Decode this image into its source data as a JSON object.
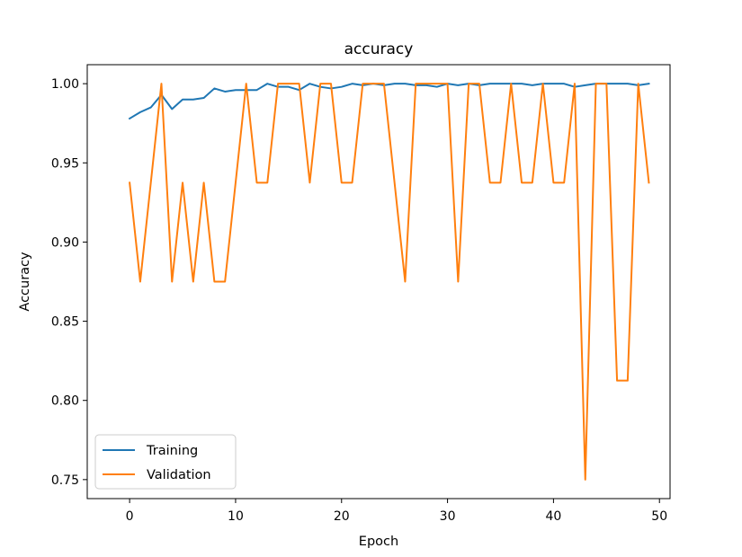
{
  "chart_data": {
    "type": "line",
    "title": "accuracy",
    "xlabel": "Epoch",
    "ylabel": "Accuracy",
    "xlim": [
      -4,
      51
    ],
    "ylim": [
      0.738,
      1.012
    ],
    "xticks": [
      0,
      10,
      20,
      30,
      40,
      50
    ],
    "xtick_labels": [
      "0",
      "10",
      "20",
      "30",
      "40",
      "50"
    ],
    "yticks": [
      0.75,
      0.8,
      0.85,
      0.9,
      0.95,
      1.0
    ],
    "ytick_labels": [
      "0.75",
      "0.80",
      "0.85",
      "0.90",
      "0.95",
      "1.00"
    ],
    "legend_position": "lower-left",
    "grid": false,
    "series": [
      {
        "name": "Training",
        "color": "#1f77b4",
        "x": [
          0,
          1,
          2,
          3,
          4,
          5,
          6,
          7,
          8,
          9,
          10,
          11,
          12,
          13,
          14,
          15,
          16,
          17,
          18,
          19,
          20,
          21,
          22,
          23,
          24,
          25,
          26,
          27,
          28,
          29,
          30,
          31,
          32,
          33,
          34,
          35,
          36,
          37,
          38,
          39,
          40,
          41,
          42,
          43,
          44,
          45,
          46,
          47,
          48,
          49
        ],
        "values": [
          0.978,
          0.982,
          0.985,
          0.993,
          0.984,
          0.99,
          0.99,
          0.991,
          0.997,
          0.995,
          0.996,
          0.996,
          0.996,
          1.0,
          0.998,
          0.998,
          0.996,
          1.0,
          0.998,
          0.997,
          0.998,
          1.0,
          0.999,
          1.0,
          0.999,
          1.0,
          1.0,
          0.999,
          0.999,
          0.998,
          1.0,
          0.999,
          1.0,
          0.999,
          1.0,
          1.0,
          1.0,
          1.0,
          0.999,
          1.0,
          1.0,
          1.0,
          0.998,
          0.999,
          1.0,
          1.0,
          1.0,
          1.0,
          0.999,
          1.0
        ]
      },
      {
        "name": "Validation",
        "color": "#ff7f0e",
        "x": [
          0,
          1,
          2,
          3,
          4,
          5,
          6,
          7,
          8,
          9,
          10,
          11,
          12,
          13,
          14,
          15,
          16,
          17,
          18,
          19,
          20,
          21,
          22,
          23,
          24,
          25,
          26,
          27,
          28,
          29,
          30,
          31,
          32,
          33,
          34,
          35,
          36,
          37,
          38,
          39,
          40,
          41,
          42,
          43,
          44,
          45,
          46,
          47,
          48,
          49
        ],
        "values": [
          0.9375,
          0.875,
          0.9375,
          1.0,
          0.875,
          0.9375,
          0.875,
          0.9375,
          0.875,
          0.875,
          0.9375,
          1.0,
          0.9375,
          0.9375,
          1.0,
          1.0,
          1.0,
          0.9375,
          1.0,
          1.0,
          0.9375,
          0.9375,
          1.0,
          1.0,
          1.0,
          0.9375,
          0.875,
          1.0,
          1.0,
          1.0,
          1.0,
          0.875,
          1.0,
          1.0,
          0.9375,
          0.9375,
          1.0,
          0.9375,
          0.9375,
          1.0,
          0.9375,
          0.9375,
          1.0,
          0.75,
          1.0,
          1.0,
          0.8125,
          0.8125,
          1.0,
          0.9375
        ]
      }
    ]
  }
}
